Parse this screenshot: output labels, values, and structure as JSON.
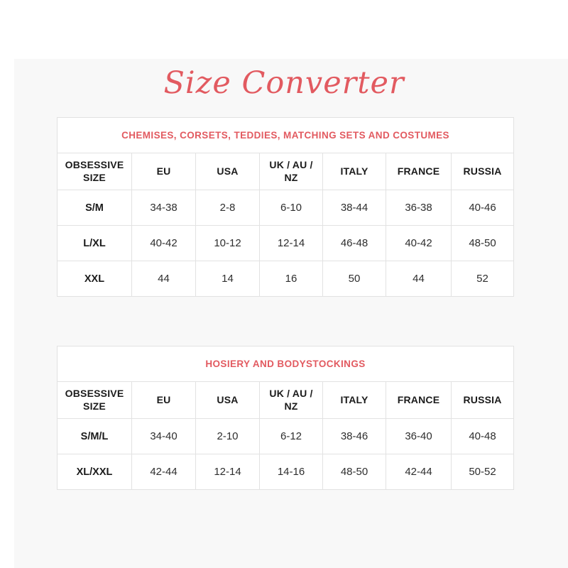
{
  "page": {
    "title": "Size Converter",
    "accent_color": "#e25a60"
  },
  "tables": [
    {
      "title": "CHEMISES, CORSETS, TEDDIES, MATCHING SETS AND COSTUMES",
      "columns": [
        "OBSESSIVE SIZE",
        "EU",
        "USA",
        "UK / AU / NZ",
        "ITALY",
        "FRANCE",
        "RUSSIA"
      ],
      "rows": [
        [
          "S/M",
          "34-38",
          "2-8",
          "6-10",
          "38-44",
          "36-38",
          "40-46"
        ],
        [
          "L/XL",
          "40-42",
          "10-12",
          "12-14",
          "46-48",
          "40-42",
          "48-50"
        ],
        [
          "XXL",
          "44",
          "14",
          "16",
          "50",
          "44",
          "52"
        ]
      ]
    },
    {
      "title": "HOSIERY AND BODYSTOCKINGS",
      "columns": [
        "OBSESSIVE SIZE",
        "EU",
        "USA",
        "UK / AU / NZ",
        "ITALY",
        "FRANCE",
        "RUSSIA"
      ],
      "rows": [
        [
          "S/M/L",
          "34-40",
          "2-10",
          "6-12",
          "38-46",
          "36-40",
          "40-48"
        ],
        [
          "XL/XXL",
          "42-44",
          "12-14",
          "14-16",
          "48-50",
          "42-44",
          "50-52"
        ]
      ]
    }
  ]
}
